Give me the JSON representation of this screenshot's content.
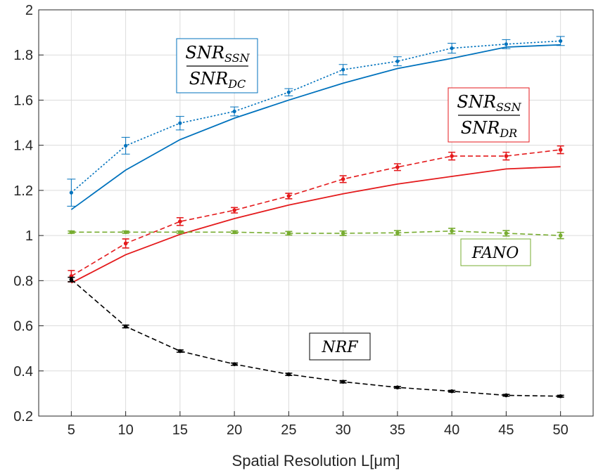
{
  "chart_data": {
    "type": "line",
    "title": "",
    "xlabel": "Spatial Resolution L[μm]",
    "ylabel": "",
    "x": [
      5,
      10,
      15,
      20,
      25,
      30,
      35,
      40,
      45,
      50
    ],
    "xlim": [
      2,
      53
    ],
    "ylim": [
      0.2,
      2
    ],
    "xticks": [
      "5",
      "10",
      "15",
      "20",
      "25",
      "30",
      "35",
      "40",
      "45",
      "50"
    ],
    "yticks": [
      "0.2",
      "0.4",
      "0.6",
      "0.8",
      "1",
      "1.2",
      "1.4",
      "1.6",
      "1.8",
      "2"
    ],
    "grid": true,
    "series": [
      {
        "group": "dc",
        "style": "solid",
        "color": "#0072BD",
        "values": [
          1.115,
          1.29,
          1.425,
          1.52,
          1.6,
          1.675,
          1.74,
          1.785,
          1.835,
          1.845
        ]
      },
      {
        "group": "dc",
        "style": "dotted",
        "color": "#0072BD",
        "markers": true,
        "values": [
          1.19,
          1.398,
          1.498,
          1.55,
          1.635,
          1.735,
          1.772,
          1.83,
          1.848,
          1.862
        ],
        "errors": [
          0.06,
          0.037,
          0.03,
          0.02,
          0.016,
          0.023,
          0.02,
          0.022,
          0.02,
          0.02
        ]
      },
      {
        "group": "dr",
        "style": "solid",
        "color": "#E41A1C",
        "values": [
          0.79,
          0.915,
          1.005,
          1.075,
          1.135,
          1.185,
          1.228,
          1.262,
          1.295,
          1.305
        ]
      },
      {
        "group": "dr",
        "style": "dashed",
        "color": "#E41A1C",
        "markers": true,
        "values": [
          0.82,
          0.965,
          1.062,
          1.112,
          1.175,
          1.25,
          1.303,
          1.352,
          1.352,
          1.38
        ],
        "errors": [
          0.025,
          0.02,
          0.017,
          0.012,
          0.012,
          0.015,
          0.015,
          0.017,
          0.017,
          0.017
        ]
      },
      {
        "group": "fano",
        "style": "dashed",
        "color": "#77AC30",
        "markers": true,
        "values": [
          1.015,
          1.015,
          1.015,
          1.015,
          1.01,
          1.01,
          1.012,
          1.02,
          1.01,
          1.0
        ],
        "errors": [
          0.005,
          0.005,
          0.005,
          0.006,
          0.008,
          0.01,
          0.01,
          0.012,
          0.012,
          0.014
        ]
      },
      {
        "group": "nrf",
        "style": "dashed",
        "color": "#000000",
        "markers": true,
        "values": [
          0.805,
          0.597,
          0.488,
          0.43,
          0.385,
          0.352,
          0.327,
          0.31,
          0.292,
          0.288
        ],
        "errors": [
          0.01,
          0.006,
          0.005,
          0.005,
          0.005,
          0.005,
          0.004,
          0.004,
          0.004,
          0.004
        ]
      }
    ],
    "annotations": {
      "dc": {
        "numerator": "SNR",
        "numerator_sub": "SSN",
        "denominator": "SNR",
        "denominator_sub": "DC",
        "color": "#0072BD"
      },
      "dr": {
        "numerator": "SNR",
        "numerator_sub": "SSN",
        "denominator": "SNR",
        "denominator_sub": "DR",
        "color": "#E41A1C"
      },
      "fano": {
        "text": "FANO",
        "color": "#77AC30"
      },
      "nrf": {
        "text": "NRF",
        "color": "#000000"
      }
    }
  }
}
